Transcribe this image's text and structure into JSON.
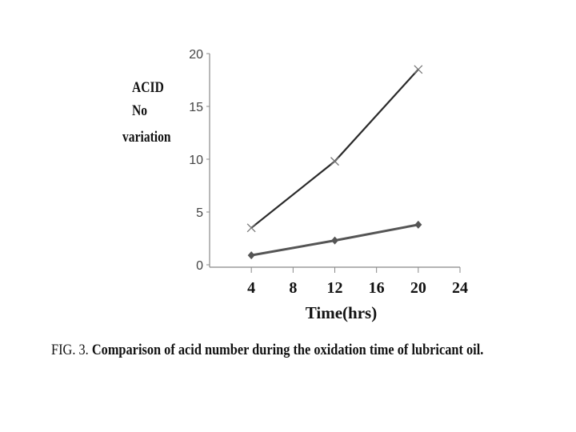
{
  "chart_data": {
    "type": "line",
    "title": "",
    "ylabel_lines": [
      "ACID",
      "No",
      "variation"
    ],
    "xlabel": "Time(hrs)",
    "xlim": [
      0,
      24
    ],
    "ylim": [
      0,
      20
    ],
    "x_ticks": [
      "4",
      "8",
      "12",
      "16",
      "20",
      "24"
    ],
    "y_ticks": [
      "0",
      "5",
      "10",
      "15",
      "20"
    ],
    "x": [
      4,
      12,
      20
    ],
    "series": [
      {
        "values": [
          3.5,
          9.8,
          18.5
        ],
        "marker": "x",
        "color": "#2a2a2a"
      },
      {
        "values": [
          0.9,
          2.3,
          3.8
        ],
        "marker": "diamond",
        "color": "#555555"
      }
    ],
    "grid": false
  },
  "caption": {
    "lead": "FIG. 3.",
    "text": "Comparison of acid number during the oxidation time of lubricant oil."
  }
}
